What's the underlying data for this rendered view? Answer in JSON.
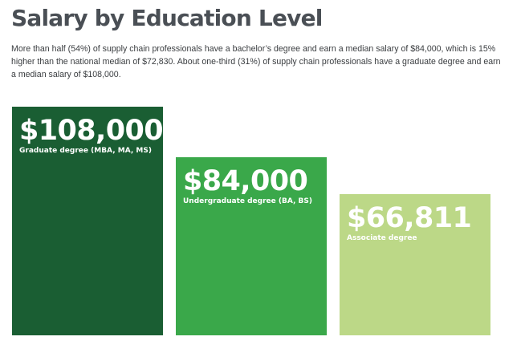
{
  "title": "Salary by Education Level",
  "subtitle": "More than half (54%) of supply chain professionals have a bachelor’s degree and earn a median salary of $84,000, which is 15% higher than the national median of $72,830. About one-third (31%) of supply chain professionals have a graduate degree and earn a median salary of $108,000.",
  "chart_data": {
    "type": "bar",
    "title": "Salary by Education Level",
    "categories": [
      "Graduate degree (MBA, MA, MS)",
      "Undergraduate degree (BA, BS)",
      "Associate degree"
    ],
    "values": [
      108000,
      84000,
      66811
    ],
    "value_labels": [
      "$108,000",
      "$84,000",
      "$66,811"
    ],
    "colors": [
      "#1a5e33",
      "#3aa84a",
      "#bcd887"
    ],
    "ylim": [
      0,
      108000
    ],
    "grid": false,
    "legend": "none"
  }
}
